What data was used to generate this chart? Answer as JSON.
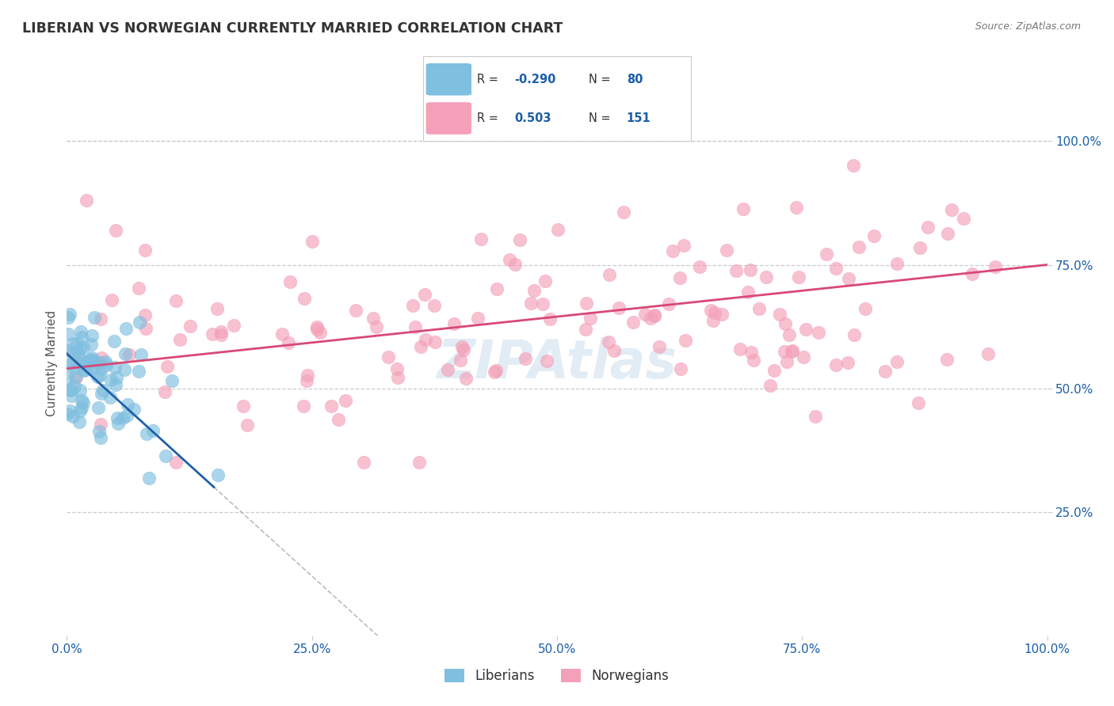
{
  "title": "LIBERIAN VS NORWEGIAN CURRENTLY MARRIED CORRELATION CHART",
  "source": "Source: ZipAtlas.com",
  "ylabel": "Currently Married",
  "xlim": [
    0,
    100
  ],
  "ylim": [
    0,
    110
  ],
  "xticklabels": [
    "0.0%",
    "25.0%",
    "50.0%",
    "75.0%",
    "100.0%"
  ],
  "ytick_vals": [
    25,
    50,
    75,
    100
  ],
  "yticklabels": [
    "25.0%",
    "50.0%",
    "75.0%",
    "100.0%"
  ],
  "liberian_R": -0.29,
  "liberian_N": 80,
  "norwegian_R": 0.503,
  "norwegian_N": 151,
  "liberian_color": "#7fbfdf",
  "norwegian_color": "#f4a0b8",
  "liberian_line_color": "#2060a8",
  "norwegian_line_color": "#d84878",
  "dash_color": "#bbbbbb",
  "grid_color": "#cccccc",
  "background_color": "#ffffff",
  "watermark": "ZIPAtlas",
  "watermark_color": "#b8d0e8",
  "legend_R_color": "#1a5ea8",
  "title_color": "#333333",
  "tick_color": "#1a5ea8",
  "ylabel_color": "#555555"
}
